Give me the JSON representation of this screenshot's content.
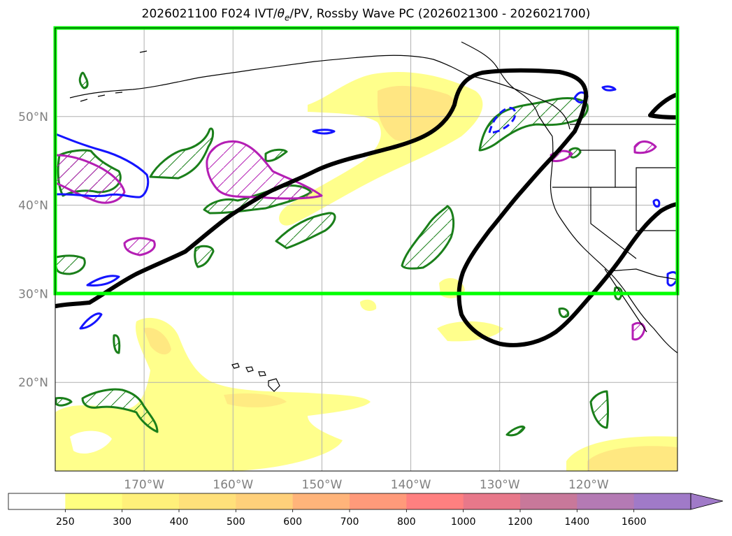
{
  "title_parts": {
    "prefix": "2026021100 F024 IVT/",
    "theta": "θ",
    "sub": "e",
    "suffix": "/PV, Rossby Wave PC (2026021300 - 2026021700)"
  },
  "map": {
    "lon_range": [
      -180,
      -110
    ],
    "lat_range": [
      10,
      60
    ],
    "lat_ticks": [
      {
        "value": 50,
        "label": "50°N"
      },
      {
        "value": 40,
        "label": "40°N"
      },
      {
        "value": 30,
        "label": "30°N"
      },
      {
        "value": 20,
        "label": "20°N"
      }
    ],
    "lon_ticks": [
      {
        "value": -170,
        "label": "170°W"
      },
      {
        "value": -160,
        "label": "160°W"
      },
      {
        "value": -150,
        "label": "150°W"
      },
      {
        "value": -140,
        "label": "140°W"
      },
      {
        "value": -130,
        "label": "130°W"
      },
      {
        "value": -120,
        "label": "120°W"
      }
    ],
    "domain_box": {
      "lon": [
        -180,
        -110
      ],
      "lat": [
        30,
        60
      ],
      "color": "#00ff00"
    }
  },
  "colorbar": {
    "levels": [
      "250",
      "300",
      "400",
      "500",
      "600",
      "700",
      "800",
      "1000",
      "1200",
      "1400",
      "1600"
    ],
    "colors": [
      "#ffffff",
      "#ffff80",
      "#fff07a",
      "#ffe07a",
      "#ffd07a",
      "#ffb47a",
      "#ff9a7a",
      "#ff8080",
      "#e8788a",
      "#c8789a",
      "#b47ab4",
      "#a07ac8"
    ]
  },
  "colors": {
    "ivt_light": "#ffff80",
    "ivt_mid": "#ffe680",
    "ivt_core": "#ffd27a",
    "pv_green": "#1a7f1a",
    "pv_magenta": "#b41eb4",
    "blue": "#1414ff",
    "rossby": "#000000"
  }
}
